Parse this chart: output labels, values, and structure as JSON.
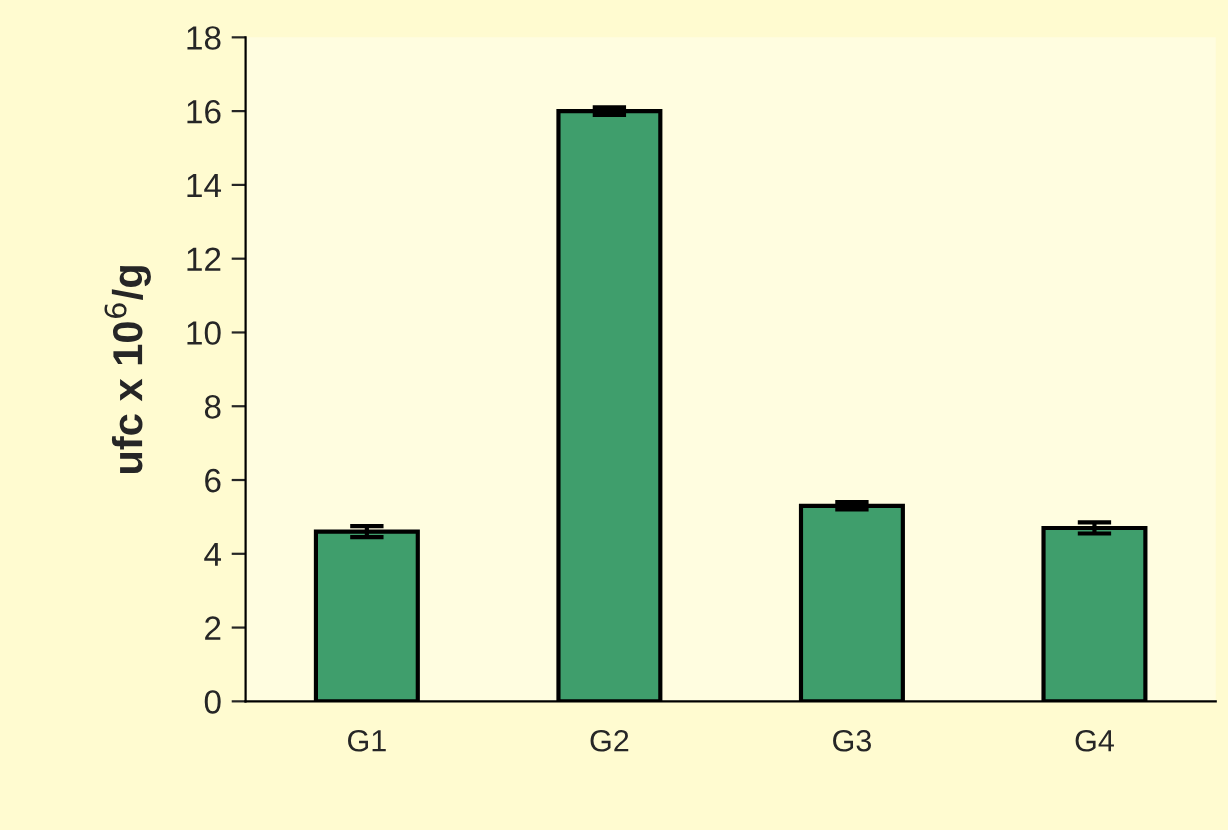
{
  "chart_data": {
    "type": "bar",
    "ylabel": "ufc x 10$^{6}$/g",
    "categories": [
      "G1",
      "G2",
      "G3",
      "G4"
    ],
    "values": [
      4.6,
      16.0,
      5.3,
      4.7
    ],
    "errors": [
      0.15,
      0.1,
      0.1,
      0.15
    ],
    "color": "#3f9e6c",
    "ylim": [
      0,
      18
    ],
    "yticks": [
      0,
      2,
      4,
      6,
      8,
      10,
      12,
      14,
      16,
      18
    ],
    "grid": false
  }
}
